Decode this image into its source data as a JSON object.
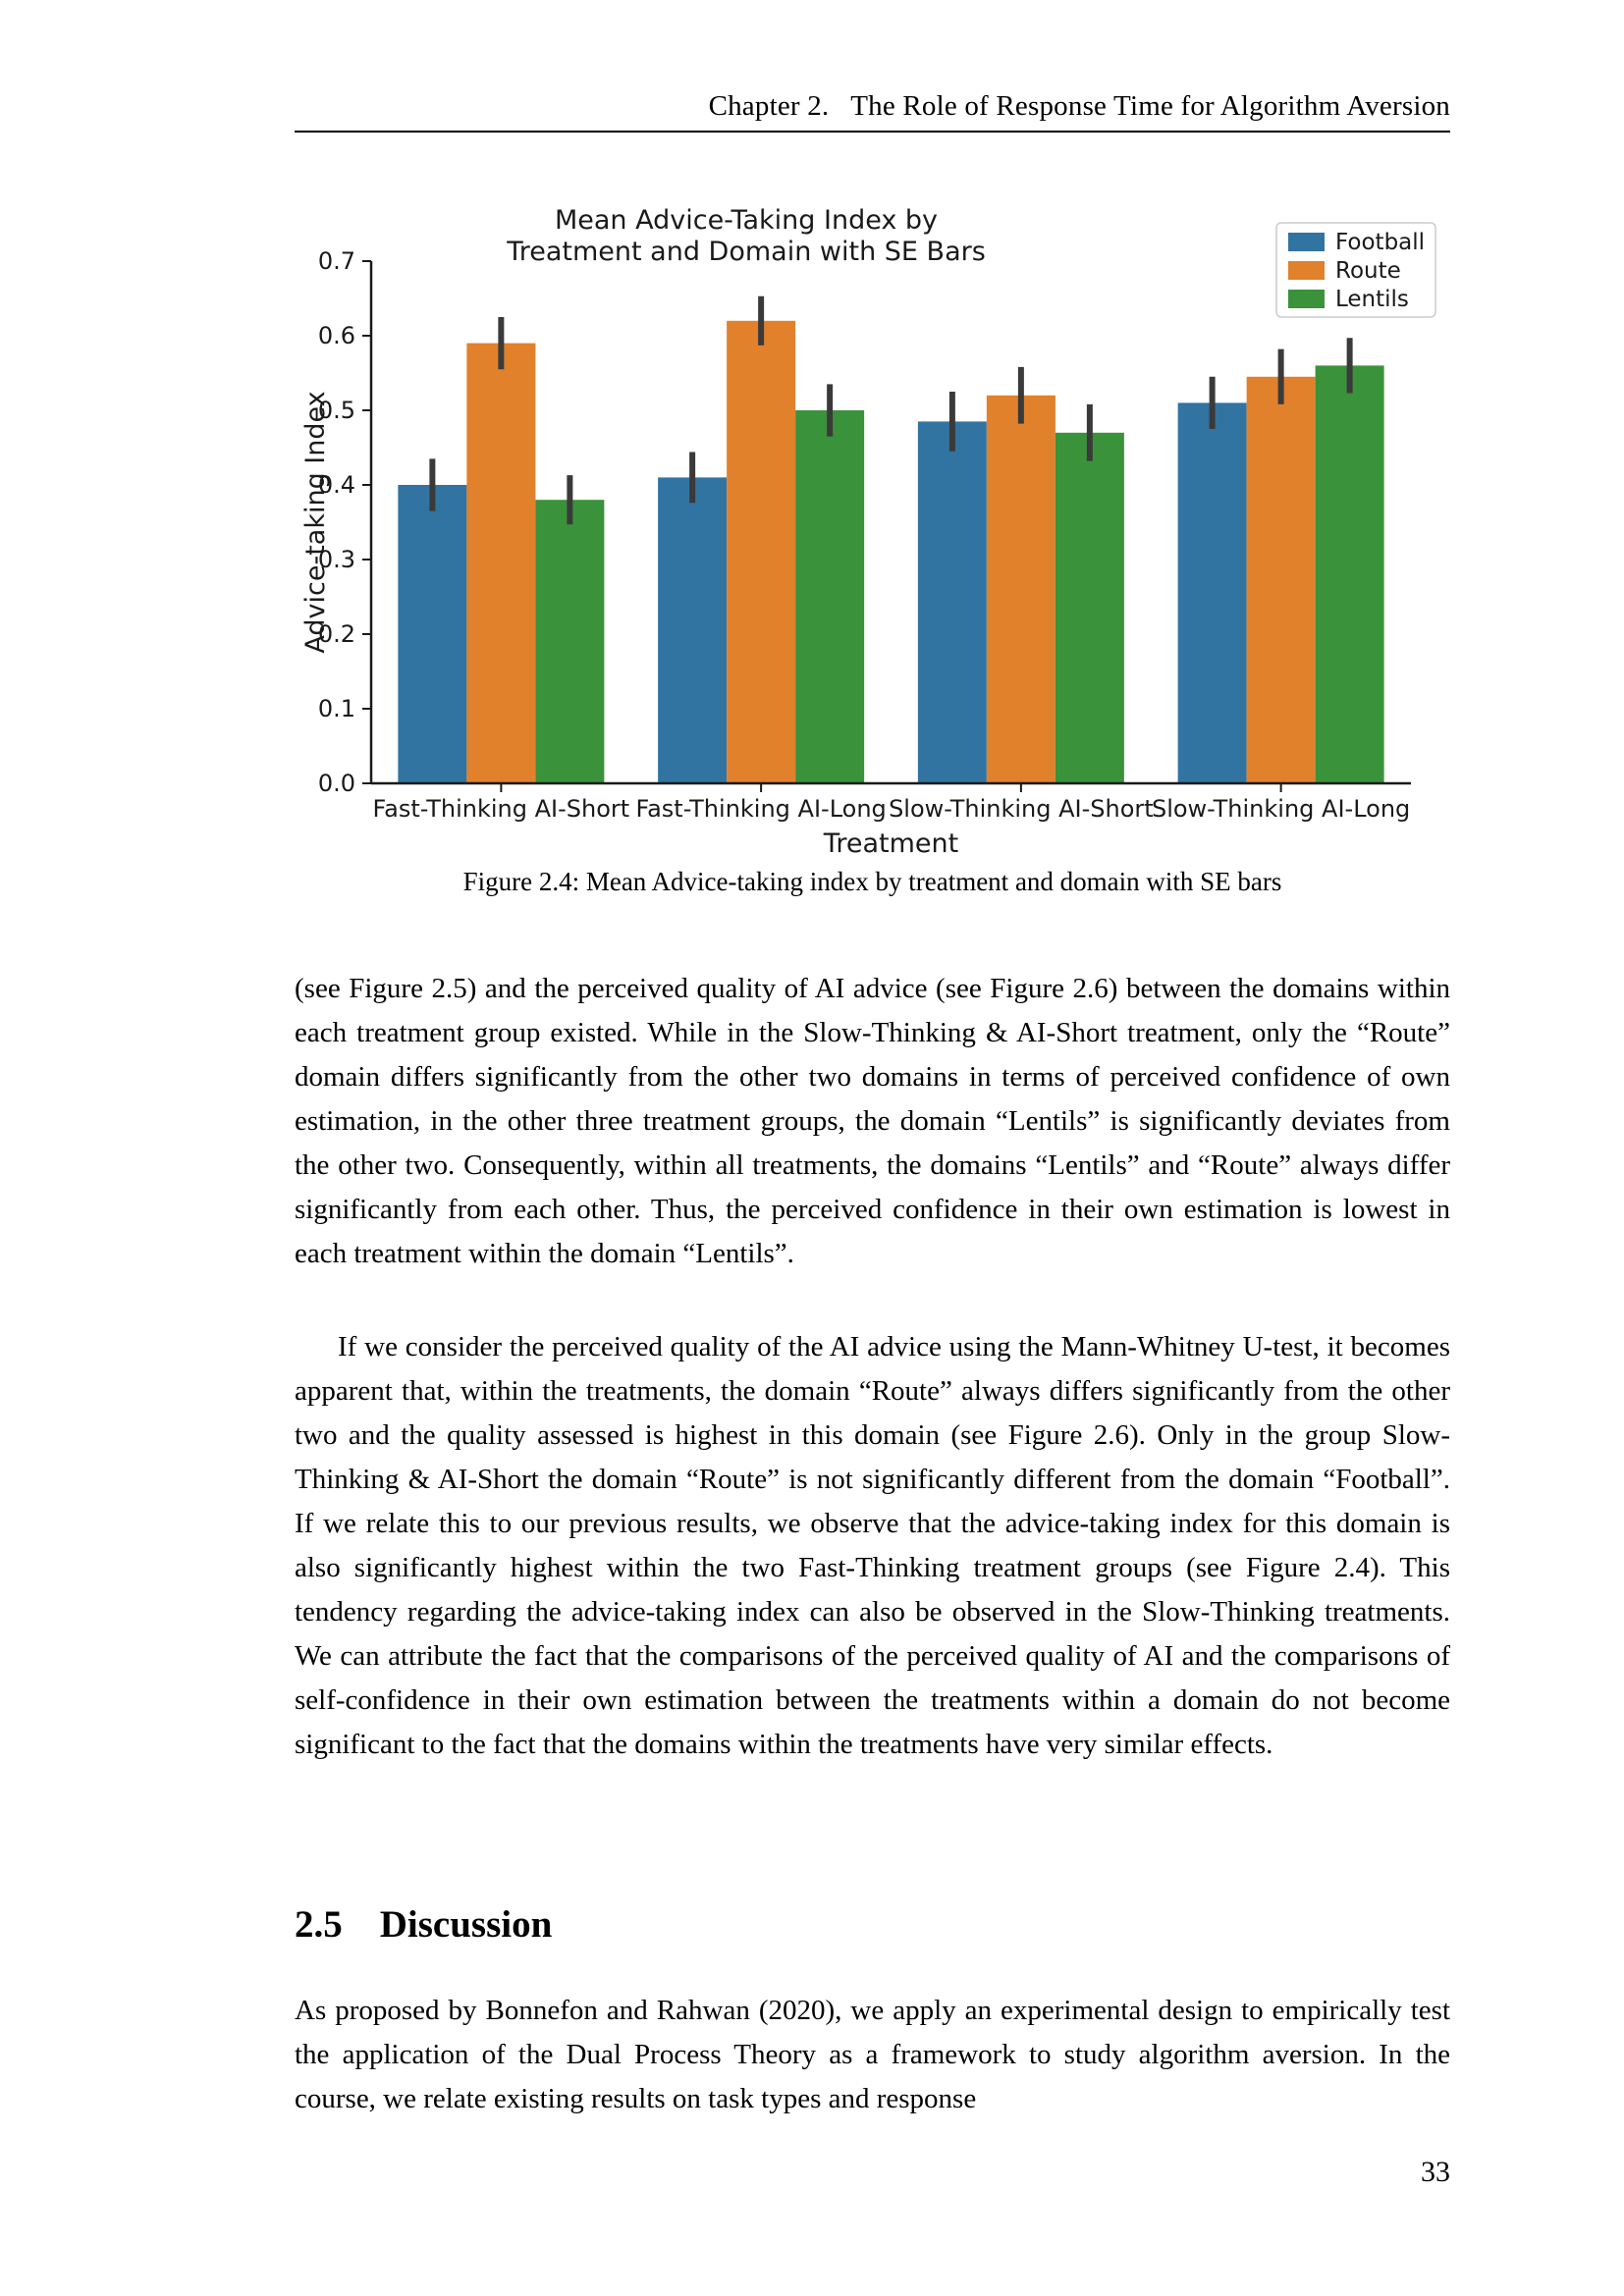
{
  "page": {
    "header_chapter": "Chapter 2.",
    "header_title": "The Role of Response Time for Algorithm Aversion",
    "page_number": "33"
  },
  "figure": {
    "caption": "Figure 2.4: Mean Advice-taking index by treatment and domain with SE bars"
  },
  "chart_data": {
    "type": "bar",
    "title_line1": "Mean Advice-Taking Index by",
    "title_line2": "Treatment and Domain with SE Bars",
    "xlabel": "Treatment",
    "ylabel": "Advice-taking Index",
    "ylim": [
      0.0,
      0.7
    ],
    "yticks": [
      "0.0",
      "0.1",
      "0.2",
      "0.3",
      "0.4",
      "0.5",
      "0.6",
      "0.7"
    ],
    "categories": [
      "Fast-Thinking AI-Short",
      "Fast-Thinking AI-Long",
      "Slow-Thinking AI-Short",
      "Slow-Thinking AI-Long"
    ],
    "series": [
      {
        "name": "Football",
        "color": "#3274a1",
        "values": [
          0.4,
          0.41,
          0.485,
          0.51
        ],
        "errors": [
          0.035,
          0.034,
          0.04,
          0.035
        ]
      },
      {
        "name": "Route",
        "color": "#e1812c",
        "values": [
          0.59,
          0.62,
          0.52,
          0.545
        ],
        "errors": [
          0.035,
          0.033,
          0.038,
          0.037
        ]
      },
      {
        "name": "Lentils",
        "color": "#3a923a",
        "values": [
          0.38,
          0.5,
          0.47,
          0.56
        ],
        "errors": [
          0.033,
          0.035,
          0.038,
          0.037
        ]
      }
    ],
    "error_bar_color": "#3a3a3a",
    "axis_color": "#1a1a1a",
    "legend_position": "upper right",
    "grid": false
  },
  "body": {
    "para1": "(see Figure 2.5) and the perceived quality of AI advice (see Figure 2.6) between the domains within each treatment group existed. While in the Slow-Thinking & AI-Short treatment, only the “Route” domain differs significantly from the other two domains in terms of perceived confidence of own estimation, in the other three treatment groups, the domain “Lentils” is significantly deviates from the other two. Consequently, within all treatments, the domains “Lentils” and “Route” always differ significantly from each other. Thus, the perceived confidence in their own estimation is lowest in each treatment within the domain “Lentils”.",
    "para2": "If we consider the perceived quality of the AI advice using the Mann-Whitney U-test, it becomes apparent that, within the treatments, the domain “Route” always differs significantly from the other two and the quality assessed is highest in this domain (see Figure 2.6). Only in the group Slow-Thinking & AI-Short the domain “Route” is not significantly different from the domain “Football”. If we relate this to our previous results, we observe that the advice-taking index for this domain is also significantly highest within the two Fast-Thinking treatment groups (see Figure 2.4). This tendency regarding the advice-taking index can also be observed in the Slow-Thinking treatments. We can attribute the fact that the comparisons of the perceived quality of AI and the comparisons of self-confidence in their own estimation between the treatments within a domain do not become significant to the fact that the domains within the treatments have very similar effects.",
    "section_number": "2.5",
    "section_title": "Discussion",
    "para3": "As proposed by Bonnefon and Rahwan (2020), we apply an experimental design to empirically test the application of the Dual Process Theory as a framework to study algorithm aversion. In the course, we relate existing results on task types and response"
  }
}
